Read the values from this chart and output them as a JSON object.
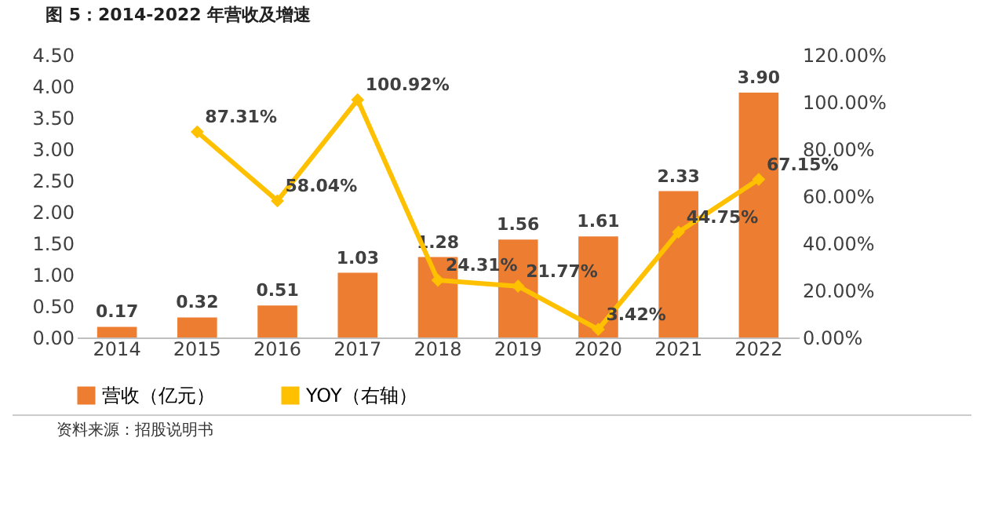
{
  "chart_data": {
    "type": "bar",
    "title": "图 5：2014-2022 年营收及增速",
    "categories": [
      "2014",
      "2015",
      "2016",
      "2017",
      "2018",
      "2019",
      "2020",
      "2021",
      "2022"
    ],
    "series": [
      {
        "name": "营收（亿元）",
        "color": "#ed7d31",
        "values": [
          0.17,
          0.32,
          0.51,
          1.03,
          1.28,
          1.56,
          1.61,
          2.33,
          3.9
        ],
        "value_labels": [
          "0.17",
          "0.32",
          "0.51",
          "1.03",
          "1.28",
          "1.56",
          "1.61",
          "2.33",
          "3.90"
        ]
      },
      {
        "name": "YOY（右轴）",
        "type": "line",
        "axis": "y2",
        "color": "#ffc000",
        "marker": "diamond",
        "values": [
          null,
          87.31,
          58.04,
          100.92,
          24.31,
          21.77,
          3.42,
          44.75,
          67.15
        ],
        "value_labels": [
          null,
          "87.31%",
          "58.04%",
          "100.92%",
          "24.31%",
          "21.77%",
          "3.42%",
          "44.75%",
          "67.15%"
        ]
      }
    ],
    "ylim": [
      0,
      4.5
    ],
    "yticks": [
      {
        "value": 0,
        "label": "0.00"
      },
      {
        "value": 0.5,
        "label": "0.50"
      },
      {
        "value": 1,
        "label": "1.00"
      },
      {
        "value": 1.5,
        "label": "1.50"
      },
      {
        "value": 2,
        "label": "2.00"
      },
      {
        "value": 2.5,
        "label": "2.50"
      },
      {
        "value": 3,
        "label": "3.00"
      },
      {
        "value": 3.5,
        "label": "3.50"
      },
      {
        "value": 4,
        "label": "4.00"
      },
      {
        "value": 4.5,
        "label": "4.50"
      }
    ],
    "y2lim": [
      0,
      120
    ],
    "y2ticks": [
      {
        "value": 0,
        "label": "0.00%"
      },
      {
        "value": 20,
        "label": "20.00%"
      },
      {
        "value": 40,
        "label": "40.00%"
      },
      {
        "value": 60,
        "label": "60.00%"
      },
      {
        "value": 80,
        "label": "80.00%"
      },
      {
        "value": 100,
        "label": "100.00%"
      },
      {
        "value": 120,
        "label": "120.00%"
      }
    ],
    "legend": "bottom",
    "grid": false,
    "annotations": [
      "资料来源：招股说明书"
    ]
  }
}
